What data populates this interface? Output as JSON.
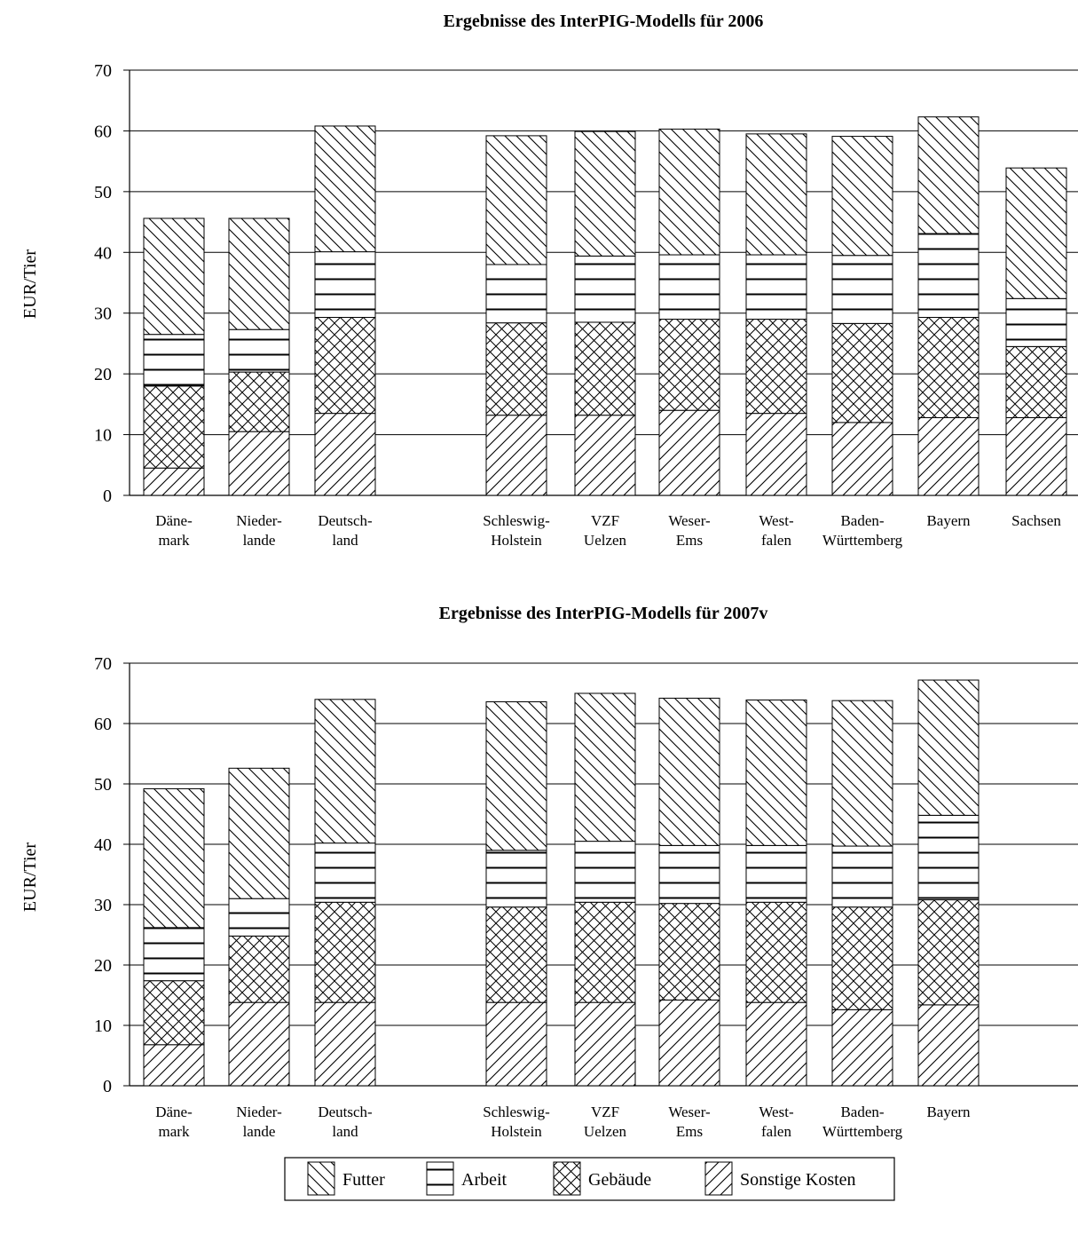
{
  "legend": {
    "items": [
      {
        "key": "futter",
        "label": "Futter",
        "pattern": "back-diagonal"
      },
      {
        "key": "arbeit",
        "label": "Arbeit",
        "pattern": "horizontal"
      },
      {
        "key": "gebaeude",
        "label": "Gebäude",
        "pattern": "crosshatch"
      },
      {
        "key": "sonstige",
        "label": "Sonstige Kosten",
        "pattern": "forward-diagonal"
      }
    ],
    "placement": "bottom-center"
  },
  "chart_data": [
    {
      "type": "bar",
      "stacked": true,
      "title": "Ergebnisse des InterPIG-Modells für 2006",
      "ylabel": "EUR/Tier",
      "xlabel": "",
      "ylim": [
        0,
        70
      ],
      "yticks": [
        "0",
        "10",
        "20",
        "30",
        "40",
        "50",
        "60",
        "70"
      ],
      "grid": "horizontal",
      "categories": [
        [
          "Däne-",
          "mark"
        ],
        [
          "Nieder-",
          "lande"
        ],
        [
          "Deutsch-",
          "land"
        ],
        [
          "Schleswig-",
          "Holstein"
        ],
        [
          "VZF",
          "Uelzen"
        ],
        [
          "Weser-",
          "Ems"
        ],
        [
          "West-",
          "falen"
        ],
        [
          "Baden-",
          "Württemberg"
        ],
        [
          "Bayern"
        ],
        [
          "Sachsen"
        ]
      ],
      "series": [
        {
          "key": "sonstige",
          "values": [
            4.5,
            10.5,
            13.5,
            13.2,
            13.2,
            14.0,
            13.5,
            12.0,
            12.8,
            12.8
          ]
        },
        {
          "key": "gebaeude",
          "values": [
            13.5,
            9.8,
            15.8,
            15.2,
            15.3,
            15.0,
            15.5,
            16.3,
            16.5,
            11.7
          ]
        },
        {
          "key": "arbeit",
          "values": [
            8.5,
            7.0,
            10.8,
            9.6,
            10.9,
            10.6,
            10.6,
            11.2,
            13.8,
            7.9
          ]
        },
        {
          "key": "futter",
          "values": [
            19.1,
            18.3,
            20.7,
            21.2,
            20.5,
            20.7,
            19.9,
            19.6,
            19.2,
            21.5
          ]
        }
      ]
    },
    {
      "type": "bar",
      "stacked": true,
      "title": "Ergebnisse des InterPIG-Modells für 2007v",
      "ylabel": "EUR/Tier",
      "xlabel": "",
      "ylim": [
        0,
        70
      ],
      "yticks": [
        "0",
        "10",
        "20",
        "30",
        "40",
        "50",
        "60",
        "70"
      ],
      "grid": "horizontal",
      "categories": [
        [
          "Däne-",
          "mark"
        ],
        [
          "Nieder-",
          "lande"
        ],
        [
          "Deutsch-",
          "land"
        ],
        [
          "Schleswig-",
          "Holstein"
        ],
        [
          "VZF",
          "Uelzen"
        ],
        [
          "Weser-",
          "Ems"
        ],
        [
          "West-",
          "falen"
        ],
        [
          "Baden-",
          "Württemberg"
        ],
        [
          "Bayern"
        ]
      ],
      "series": [
        {
          "key": "sonstige",
          "values": [
            6.8,
            13.8,
            13.8,
            13.8,
            13.8,
            14.2,
            13.8,
            12.6,
            13.4
          ]
        },
        {
          "key": "gebaeude",
          "values": [
            10.6,
            11.0,
            16.6,
            15.8,
            16.6,
            16.0,
            16.6,
            17.0,
            17.4
          ]
        },
        {
          "key": "arbeit",
          "values": [
            8.8,
            6.2,
            9.8,
            9.4,
            10.1,
            9.6,
            9.4,
            10.1,
            14.0
          ]
        },
        {
          "key": "futter",
          "values": [
            23.0,
            21.6,
            23.8,
            24.6,
            24.5,
            24.4,
            24.1,
            24.1,
            22.4
          ]
        }
      ]
    }
  ]
}
